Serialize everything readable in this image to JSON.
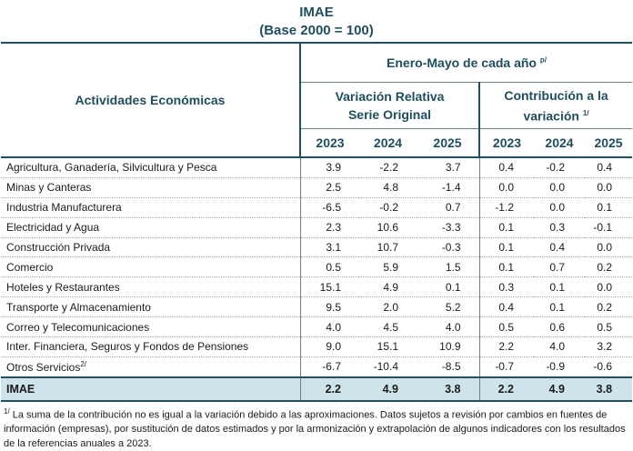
{
  "title": "IMAE",
  "subtitle": "(Base 2000 = 100)",
  "header": {
    "row_label": "Actividades Económicas",
    "period": "Enero-Mayo de cada año",
    "period_sup": "p/",
    "group1_line1": "Variación Relativa",
    "group1_line2": "Serie Original",
    "group2_line1": "Contribución a la",
    "group2_line2": "variación",
    "group2_sup": "1/",
    "years": [
      "2023",
      "2024",
      "2025"
    ]
  },
  "rows": [
    {
      "label": "Agricultura, Ganadería, Silvicultura y Pesca",
      "var": [
        "3.9",
        "-2.2",
        "3.7"
      ],
      "con": [
        "0.4",
        "-0.2",
        "0.4"
      ]
    },
    {
      "label": "Minas y Canteras",
      "var": [
        "2.5",
        "4.8",
        "-1.4"
      ],
      "con": [
        "0.0",
        "0.0",
        "0.0"
      ]
    },
    {
      "label": "Industria Manufacturera",
      "var": [
        "-6.5",
        "-0.2",
        "0.7"
      ],
      "con": [
        "-1.2",
        "0.0",
        "0.1"
      ]
    },
    {
      "label": "Electricidad y Agua",
      "var": [
        "2.3",
        "10.6",
        "-3.3"
      ],
      "con": [
        "0.1",
        "0.3",
        "-0.1"
      ]
    },
    {
      "label": "Construcción Privada",
      "var": [
        "3.1",
        "10.7",
        "-0.3"
      ],
      "con": [
        "0.1",
        "0.4",
        "0.0"
      ]
    },
    {
      "label": "Comercio",
      "var": [
        "0.5",
        "5.9",
        "1.5"
      ],
      "con": [
        "0.1",
        "0.7",
        "0.2"
      ]
    },
    {
      "label": "Hoteles y Restaurantes",
      "var": [
        "15.1",
        "4.9",
        "0.1"
      ],
      "con": [
        "0.3",
        "0.1",
        "0.0"
      ]
    },
    {
      "label": "Transporte y Almacenamiento",
      "var": [
        "9.5",
        "2.0",
        "5.2"
      ],
      "con": [
        "0.4",
        "0.1",
        "0.2"
      ]
    },
    {
      "label": "Correo y Telecomunicaciones",
      "var": [
        "4.0",
        "4.5",
        "4.0"
      ],
      "con": [
        "0.5",
        "0.6",
        "0.5"
      ]
    },
    {
      "label": "Inter. Financiera, Seguros y Fondos de Pensiones",
      "var": [
        "9.0",
        "15.1",
        "10.9"
      ],
      "con": [
        "2.2",
        "4.0",
        "3.2"
      ]
    },
    {
      "label": "Otros Servicios",
      "sup": "2/",
      "var": [
        "-6.7",
        "-10.4",
        "-8.5"
      ],
      "con": [
        "-0.7",
        "-0.9",
        "-0.6"
      ]
    }
  ],
  "total": {
    "label": "IMAE",
    "var": [
      "2.2",
      "4.9",
      "3.8"
    ],
    "con": [
      "2.2",
      "4.9",
      "3.8"
    ]
  },
  "note": {
    "sup": "1/",
    "text": "La suma de la contribución no es igual a la variación debido a las aproximaciones. Datos sujetos a revisión por cambios en fuentes de información (empresas), por sustitución de datos estimados y por la armonización y extrapolación de algunos indicadores con los resultados de la referencias anuales a 2023."
  }
}
